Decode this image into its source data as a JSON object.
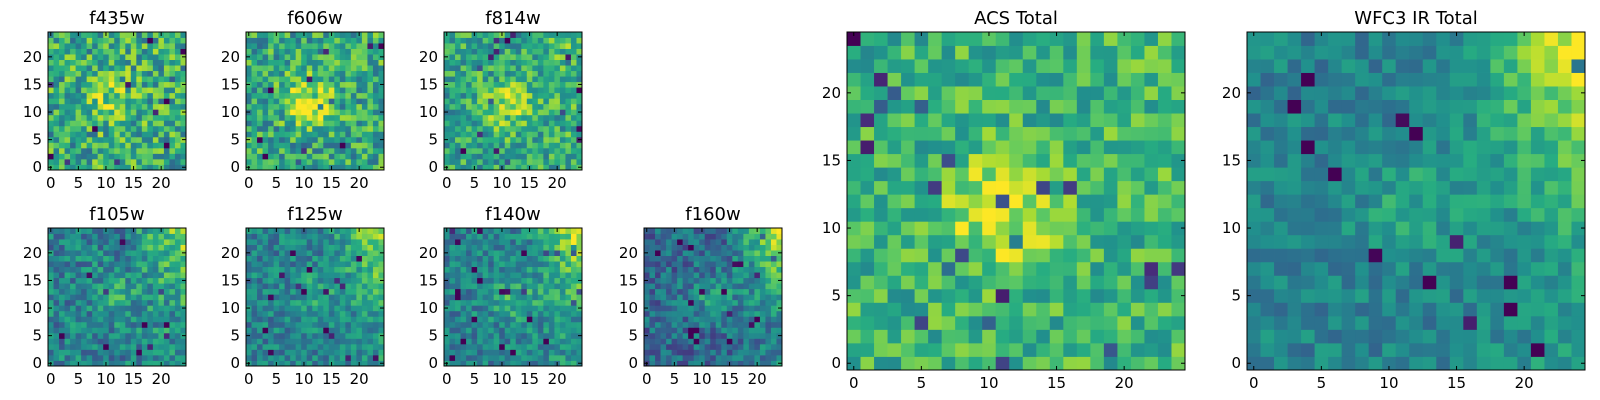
{
  "chart_data": [
    {
      "type": "heatmap",
      "title": "f435w",
      "colormap": "viridis",
      "grid": "25x25",
      "x_ticks": [
        "0",
        "5",
        "10",
        "15",
        "20"
      ],
      "y_ticks": [
        "0",
        "5",
        "10",
        "15",
        "20"
      ],
      "xlim": [
        0,
        25
      ],
      "ylim": [
        0,
        25
      ],
      "texture": {
        "noise": 0.55,
        "base": 0.62,
        "peak": 0.22,
        "peak_center": [
          11,
          12
        ],
        "corner_boost": 0.0
      }
    },
    {
      "type": "heatmap",
      "title": "f606w",
      "colormap": "viridis",
      "grid": "25x25",
      "x_ticks": [
        "0",
        "5",
        "10",
        "15",
        "20"
      ],
      "y_ticks": [
        "0",
        "5",
        "10",
        "15",
        "20"
      ],
      "xlim": [
        0,
        25
      ],
      "ylim": [
        0,
        25
      ],
      "texture": {
        "noise": 0.5,
        "base": 0.6,
        "peak": 0.35,
        "peak_center": [
          11,
          12
        ],
        "corner_boost": 0.05
      }
    },
    {
      "type": "heatmap",
      "title": "f814w",
      "colormap": "viridis",
      "grid": "25x25",
      "x_ticks": [
        "0",
        "5",
        "10",
        "15",
        "20"
      ],
      "y_ticks": [
        "0",
        "5",
        "10",
        "15",
        "20"
      ],
      "xlim": [
        0,
        25
      ],
      "ylim": [
        0,
        25
      ],
      "texture": {
        "noise": 0.45,
        "base": 0.6,
        "peak": 0.3,
        "peak_center": [
          11,
          11
        ],
        "corner_boost": 0.15
      }
    },
    {
      "type": "heatmap",
      "title": "f105w",
      "colormap": "viridis",
      "grid": "25x25",
      "x_ticks": [
        "0",
        "5",
        "10",
        "15",
        "20"
      ],
      "y_ticks": [
        "0",
        "5",
        "10",
        "15",
        "20"
      ],
      "xlim": [
        0,
        25
      ],
      "ylim": [
        0,
        25
      ],
      "texture": {
        "noise": 0.4,
        "base": 0.45,
        "peak": 0.15,
        "peak_center": [
          12,
          12
        ],
        "corner_boost": 0.45
      }
    },
    {
      "type": "heatmap",
      "title": "f125w",
      "colormap": "viridis",
      "grid": "25x25",
      "x_ticks": [
        "0",
        "5",
        "10",
        "15",
        "20"
      ],
      "y_ticks": [
        "0",
        "5",
        "10",
        "15",
        "20"
      ],
      "xlim": [
        0,
        25
      ],
      "ylim": [
        0,
        25
      ],
      "texture": {
        "noise": 0.35,
        "base": 0.45,
        "peak": 0.15,
        "peak_center": [
          12,
          12
        ],
        "corner_boost": 0.5
      }
    },
    {
      "type": "heatmap",
      "title": "f140w",
      "colormap": "viridis",
      "grid": "25x25",
      "x_ticks": [
        "0",
        "5",
        "10",
        "15",
        "20"
      ],
      "y_ticks": [
        "0",
        "5",
        "10",
        "15",
        "20"
      ],
      "xlim": [
        0,
        25
      ],
      "ylim": [
        0,
        25
      ],
      "texture": {
        "noise": 0.35,
        "base": 0.45,
        "peak": 0.2,
        "peak_center": [
          12,
          12
        ],
        "corner_boost": 0.55
      }
    },
    {
      "type": "heatmap",
      "title": "f160w",
      "colormap": "viridis",
      "grid": "25x25",
      "x_ticks": [
        "0",
        "5",
        "10",
        "15",
        "20"
      ],
      "y_ticks": [
        "0",
        "5",
        "10",
        "15",
        "20"
      ],
      "xlim": [
        0,
        25
      ],
      "ylim": [
        0,
        25
      ],
      "texture": {
        "noise": 0.35,
        "base": 0.35,
        "peak": 0.2,
        "peak_center": [
          12,
          12
        ],
        "corner_boost": 0.65
      }
    },
    {
      "type": "heatmap",
      "title": "ACS Total",
      "colormap": "viridis",
      "grid": "25x25",
      "x_ticks": [
        "0",
        "5",
        "10",
        "15",
        "20"
      ],
      "y_ticks": [
        "0",
        "5",
        "10",
        "15",
        "20"
      ],
      "xlim": [
        0,
        25
      ],
      "ylim": [
        0,
        25
      ],
      "texture": {
        "noise": 0.38,
        "base": 0.65,
        "peak": 0.3,
        "peak_center": [
          11,
          11
        ],
        "corner_boost": 0.05
      }
    },
    {
      "type": "heatmap",
      "title": "WFC3 IR Total",
      "colormap": "viridis",
      "grid": "25x25",
      "x_ticks": [
        "0",
        "5",
        "10",
        "15",
        "20"
      ],
      "y_ticks": [
        "0",
        "5",
        "10",
        "15",
        "20"
      ],
      "xlim": [
        0,
        25
      ],
      "ylim": [
        0,
        25
      ],
      "texture": {
        "noise": 0.25,
        "base": 0.45,
        "peak": 0.15,
        "peak_center": [
          12,
          12
        ],
        "corner_boost": 0.6
      }
    }
  ]
}
